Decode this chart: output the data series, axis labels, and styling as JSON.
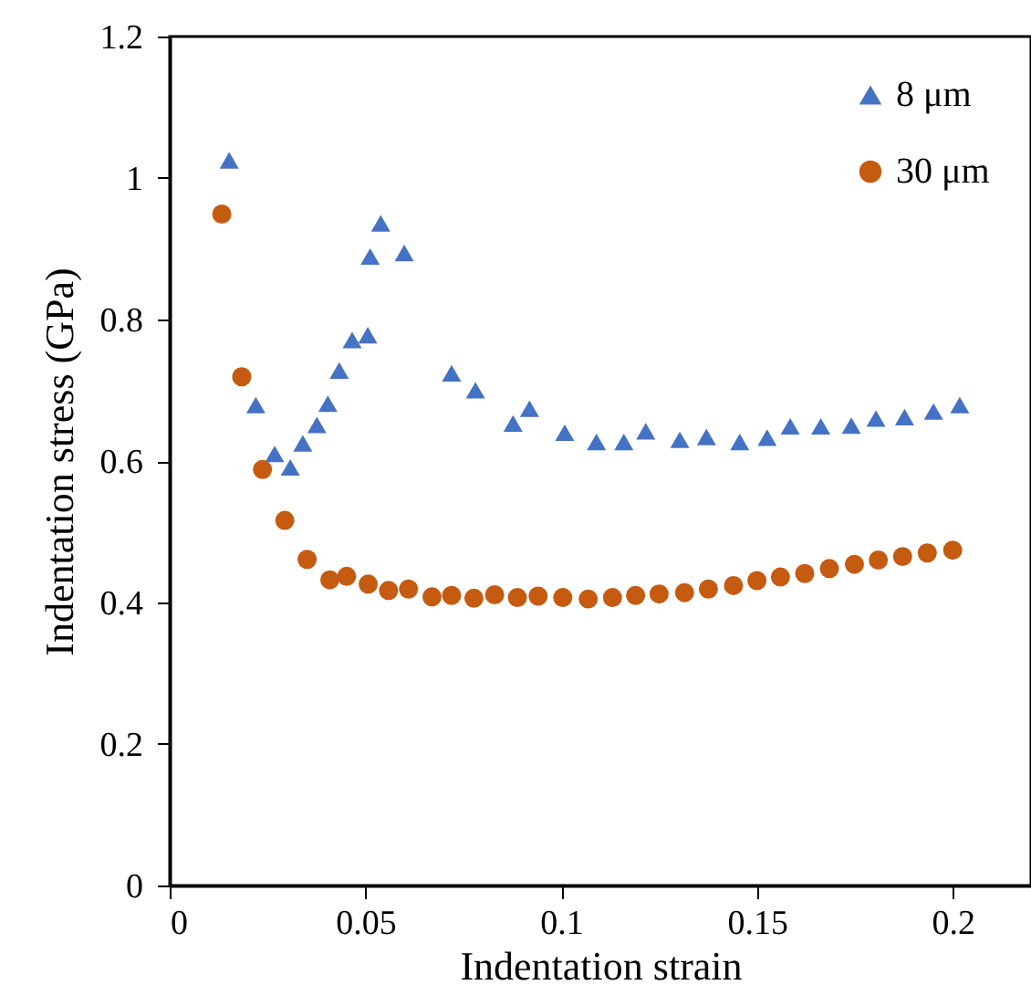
{
  "chart_data": {
    "type": "scatter",
    "xlabel": "Indentation strain",
    "ylabel": "Indentation stress (GPa)",
    "xlim": [
      0,
      0.22
    ],
    "xticks": [
      0,
      0.05,
      0.1,
      0.15,
      0.2
    ],
    "ylim": [
      0,
      1.2
    ],
    "yticks": [
      0,
      0.2,
      0.4,
      0.6,
      0.8,
      1,
      1.2
    ],
    "grid": false,
    "legend": "top right",
    "series": [
      {
        "name": "8 μm",
        "color": "#4472c4",
        "marker": "triangle",
        "x": [
          0.0152,
          0.022,
          0.0268,
          0.0308,
          0.034,
          0.0376,
          0.0404,
          0.0433,
          0.0466,
          0.0506,
          0.0512,
          0.0539,
          0.0599,
          0.072,
          0.0781,
          0.0877,
          0.0919,
          0.1009,
          0.109,
          0.116,
          0.1216,
          0.1303,
          0.1371,
          0.1456,
          0.1526,
          0.1585,
          0.1663,
          0.1741,
          0.1804,
          0.1877,
          0.1951,
          0.2018
        ],
        "values": [
          1.025,
          0.679,
          0.61,
          0.591,
          0.625,
          0.651,
          0.681,
          0.728,
          0.771,
          0.778,
          0.889,
          0.936,
          0.894,
          0.724,
          0.7,
          0.653,
          0.674,
          0.64,
          0.627,
          0.627,
          0.642,
          0.63,
          0.634,
          0.627,
          0.633,
          0.649,
          0.649,
          0.65,
          0.66,
          0.662,
          0.67,
          0.679
        ]
      },
      {
        "name": "30 μm",
        "color": "#c55a11",
        "marker": "circle",
        "x": [
          0.0133,
          0.0184,
          0.0237,
          0.0294,
          0.0351,
          0.0409,
          0.0452,
          0.0507,
          0.0559,
          0.061,
          0.067,
          0.072,
          0.0777,
          0.083,
          0.0888,
          0.0941,
          0.1004,
          0.1069,
          0.1131,
          0.119,
          0.125,
          0.1315,
          0.1376,
          0.144,
          0.15,
          0.156,
          0.1622,
          0.1685,
          0.1749,
          0.181,
          0.1872,
          0.1935,
          0.2
        ],
        "values": [
          0.949,
          0.719,
          0.588,
          0.516,
          0.461,
          0.432,
          0.437,
          0.426,
          0.417,
          0.419,
          0.408,
          0.41,
          0.406,
          0.411,
          0.407,
          0.409,
          0.407,
          0.405,
          0.407,
          0.41,
          0.412,
          0.414,
          0.419,
          0.424,
          0.431,
          0.436,
          0.441,
          0.448,
          0.454,
          0.46,
          0.465,
          0.47,
          0.474
        ]
      }
    ]
  }
}
